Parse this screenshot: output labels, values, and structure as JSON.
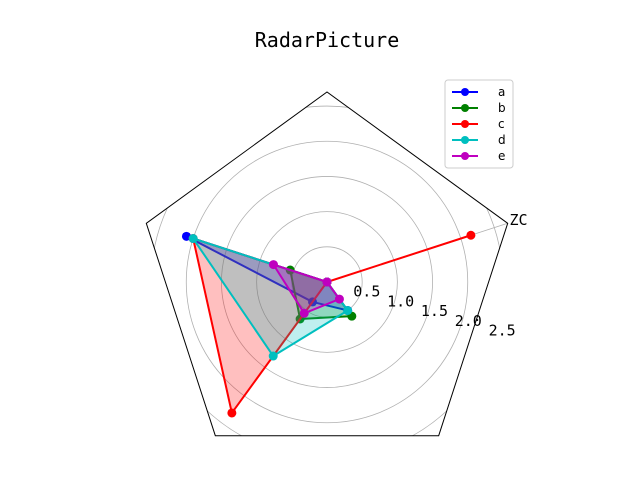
{
  "chart_data": {
    "type": "radar",
    "title": "RadarPicture",
    "axis_labels": [
      "ZC",
      "",
      "",
      "",
      ""
    ],
    "radial_ticks": [
      "0.5",
      "1.0",
      "1.5",
      "2.0",
      "2.5"
    ],
    "radial_tick_values": [
      0.5,
      1.0,
      1.5,
      2.0,
      2.5
    ],
    "rmax": 2.7,
    "angles_deg": [
      18,
      90,
      162,
      234,
      306
    ],
    "series": [
      {
        "name": "a",
        "color": "#0000ff",
        "fill": "#0000ff",
        "values": [
          0,
          0,
          2.1,
          0.35,
          0.5
        ]
      },
      {
        "name": "b",
        "color": "#008000",
        "fill": "#008000",
        "values": [
          0,
          0,
          0.55,
          0.65,
          0.6
        ]
      },
      {
        "name": "c",
        "color": "#ff0000",
        "fill": "#ff0000",
        "values": [
          2.15,
          0,
          2.0,
          2.3,
          0
        ]
      },
      {
        "name": "d",
        "color": "#00bfbf",
        "fill": "#00bfbf",
        "values": [
          0,
          0,
          2.0,
          1.3,
          0.5
        ]
      },
      {
        "name": "e",
        "color": "#bf00bf",
        "fill": "#bf00bf",
        "values": [
          0,
          0,
          0.8,
          0.55,
          0.3
        ]
      }
    ],
    "legend_position": "upper-right",
    "grid": true
  }
}
